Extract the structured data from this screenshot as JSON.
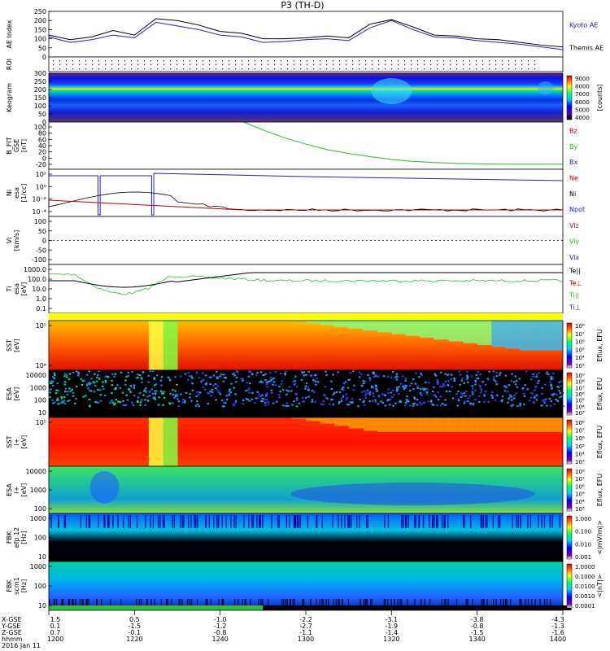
{
  "page_title": "P3 (TH-D)",
  "colors": {
    "kyoto": "#2020c0",
    "themis": "#000000",
    "bz": "#c00000",
    "by": "#20c020",
    "bx": "#2020c0"
  },
  "chart_data": [
    {
      "id": "ae",
      "type": "line",
      "ylabel": "AE Index",
      "ylim": [
        0,
        250
      ],
      "yticks": [
        "0",
        "50",
        "100",
        "150",
        "200",
        "250"
      ],
      "x_minutes": [
        0,
        10,
        20,
        30,
        40,
        50,
        60,
        70,
        80,
        90,
        100,
        110,
        120,
        130,
        140,
        150,
        160,
        170,
        180,
        190,
        200,
        210,
        220,
        230,
        240
      ],
      "series": [
        {
          "name": "Kyoto AE",
          "color": "#2020c0",
          "values": [
            110,
            80,
            95,
            120,
            105,
            190,
            170,
            150,
            120,
            110,
            80,
            85,
            95,
            100,
            90,
            160,
            200,
            150,
            110,
            105,
            90,
            80,
            70,
            55,
            40
          ]
        },
        {
          "name": "Themis AE",
          "color": "#000000",
          "values": [
            120,
            95,
            110,
            145,
            120,
            210,
            200,
            175,
            140,
            130,
            100,
            100,
            105,
            115,
            105,
            180,
            205,
            165,
            120,
            115,
            100,
            95,
            80,
            65,
            55
          ]
        }
      ]
    },
    {
      "id": "roi",
      "type": "heatmap",
      "ylabel": "ROI"
    },
    {
      "id": "keogram",
      "type": "heatmap",
      "ylabel": "Keogram",
      "yticks": [
        "0",
        "50",
        "100",
        "150",
        "200",
        "250",
        "300"
      ],
      "colorbar": {
        "label": "[counts]",
        "ticks": [
          "9000",
          "8000",
          "7000",
          "6000",
          "5000",
          "4000"
        ]
      }
    },
    {
      "id": "bfit",
      "type": "line",
      "ylabel": "B_FIT\nGSE\n[nT]",
      "ylim": [
        -20,
        100
      ],
      "yticks": [
        "100",
        "80",
        "60",
        "40",
        "20",
        "0",
        "-20"
      ],
      "series": [
        {
          "name": "Bz",
          "color": "#c00000"
        },
        {
          "name": "By",
          "color": "#20c020",
          "x_minutes": [
            91,
            100,
            110,
            120,
            130,
            140,
            150,
            160,
            170,
            180,
            190,
            200,
            210,
            220,
            230,
            240
          ],
          "values": [
            100,
            80,
            60,
            44,
            30,
            20,
            12,
            5,
            0,
            -3,
            -5,
            -6,
            -7,
            -7,
            -7,
            -7
          ]
        },
        {
          "name": "Bx",
          "color": "#2020c0"
        }
      ]
    },
    {
      "id": "ni",
      "type": "line",
      "ylabel": "Ni\nesa\n[1/cc]",
      "yticks": [
        "10²",
        "10⁰",
        "10⁻²",
        "10⁻⁴"
      ],
      "series": [
        {
          "name": "Ne",
          "color": "#c00000"
        },
        {
          "name": "Ni",
          "color": "#000000"
        },
        {
          "name": "Npot",
          "color": "#2020c0"
        }
      ]
    },
    {
      "id": "vi",
      "type": "line",
      "ylabel": "Vi\n[km/s]",
      "ylim": [
        -100,
        100
      ],
      "yticks": [
        "100",
        "50",
        "0",
        "-50",
        "-100"
      ],
      "series": [
        {
          "name": "Viz",
          "color": "#c00000"
        },
        {
          "name": "Viy",
          "color": "#20c020"
        },
        {
          "name": "Vix",
          "color": "#2020c0"
        }
      ]
    },
    {
      "id": "ti",
      "type": "line",
      "ylabel": "Ti\nesa\n[eV]",
      "yticks": [
        "1000.0",
        "100.0",
        "10.0",
        "1.0",
        "0.1"
      ],
      "series": [
        {
          "name": "Te||",
          "color": "#000000"
        },
        {
          "name": "Te⊥",
          "color": "#c00000"
        },
        {
          "name": "Ti||",
          "color": "#20c020"
        },
        {
          "name": "Ti⊥",
          "color": "#2020c0"
        }
      ]
    },
    {
      "id": "sst_e",
      "type": "heatmap",
      "ylabel": "SST\n[eV]",
      "yticks": [
        "10⁵",
        "10⁴"
      ],
      "colorbar": {
        "label": "Eflux, EFU",
        "ticks": [
          "10⁸",
          "10⁷",
          "10⁶",
          "10⁵",
          "10⁴",
          "10³"
        ]
      }
    },
    {
      "id": "esa_e",
      "type": "heatmap",
      "ylabel": "ESA\n[eV]",
      "yticks": [
        "10000",
        "1000",
        "100",
        "10"
      ],
      "colorbar": {
        "label": "Eflux, EFU",
        "ticks": [
          "10⁹",
          "10⁸",
          "10⁷",
          "10⁶",
          "10⁵",
          "10⁴",
          "10³"
        ]
      }
    },
    {
      "id": "sst_i",
      "type": "heatmap",
      "ylabel": "SST\ni+\n[eV]",
      "yticks": [
        "10⁵"
      ],
      "colorbar": {
        "label": "Eflux, EFU",
        "ticks": [
          "10⁸",
          "10⁷",
          "10⁶",
          "10⁵",
          "10⁴",
          "10³"
        ]
      }
    },
    {
      "id": "esa_i",
      "type": "heatmap",
      "ylabel": "ESA\ni+\n[eV]",
      "yticks": [
        "10000",
        "1000",
        "100"
      ],
      "colorbar": {
        "label": "Eflux, EFU",
        "ticks": [
          "10⁸",
          "10⁷",
          "10⁶",
          "10⁵",
          "10⁴",
          "10³"
        ]
      }
    },
    {
      "id": "fbk_e",
      "type": "heatmap",
      "ylabel": "FBK\nefp 12\n[Hz]",
      "yticks": [
        "1000",
        "100",
        "10"
      ],
      "colorbar": {
        "label": "<|mV/m|>",
        "ticks": [
          "1.000",
          "0.100",
          "0.010",
          "0.001"
        ]
      }
    },
    {
      "id": "fbk_b",
      "type": "heatmap",
      "ylabel": "FBK\nscm1\n[Hz]",
      "yticks": [
        "1000",
        "100",
        "10"
      ],
      "colorbar": {
        "label": "<|nT|>",
        "ticks": [
          "1.0000",
          "0.1000",
          "0.0100",
          "0.0010",
          "0.0001"
        ]
      }
    }
  ],
  "xaxis": {
    "row_labels": [
      "X-GSE",
      "Y-GSE",
      "Z-GSE",
      "hhmm",
      "2016 Jan 11"
    ],
    "columns": [
      {
        "vals": [
          "1.5",
          "0.1",
          "0.7",
          "1200"
        ]
      },
      {
        "vals": [
          "0.5",
          "-1.5",
          "-0.1",
          "1220"
        ]
      },
      {
        "vals": [
          "-1.0",
          "-1.2",
          "-0.8",
          "1240"
        ]
      },
      {
        "vals": [
          "-2.2",
          "-2.7",
          "-1.1",
          "1300"
        ]
      },
      {
        "vals": [
          "-3.1",
          "-1.9",
          "-1.4",
          "1320"
        ]
      },
      {
        "vals": [
          "-3.8",
          "-0.8",
          "-1.5",
          "1340"
        ]
      },
      {
        "vals": [
          "-4.3",
          "-1.3",
          "-1.6",
          "1400"
        ]
      }
    ]
  }
}
